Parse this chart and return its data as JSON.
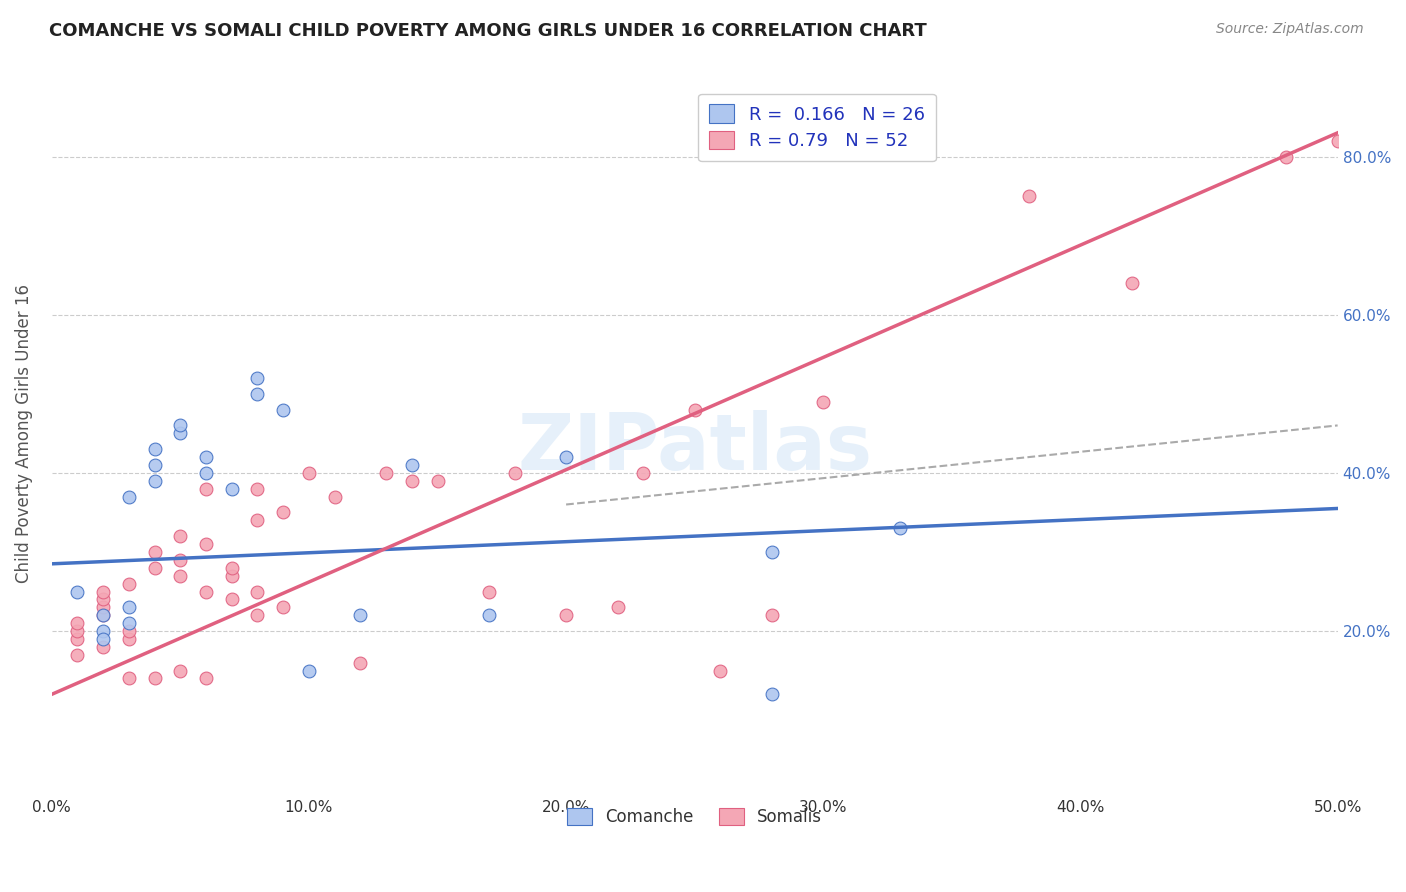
{
  "title": "COMANCHE VS SOMALI CHILD POVERTY AMONG GIRLS UNDER 16 CORRELATION CHART",
  "source": "Source: ZipAtlas.com",
  "ylabel": "Child Poverty Among Girls Under 16",
  "xlim": [
    0.0,
    0.5
  ],
  "ylim": [
    0.0,
    0.9
  ],
  "xticks": [
    0.0,
    0.1,
    0.2,
    0.3,
    0.4,
    0.5
  ],
  "yticks": [
    0.2,
    0.4,
    0.6,
    0.8
  ],
  "ytick_labels": [
    "20.0%",
    "40.0%",
    "60.0%",
    "80.0%"
  ],
  "xtick_labels": [
    "0.0%",
    "10.0%",
    "20.0%",
    "30.0%",
    "40.0%",
    "50.0%"
  ],
  "background_color": "#ffffff",
  "grid_color": "#cccccc",
  "comanche_color": "#aec6ef",
  "somali_color": "#f4a7b5",
  "comanche_line_color": "#4472c4",
  "somali_line_color": "#e06080",
  "dashed_line_color": "#aaaaaa",
  "legend_text_color": "#2233bb",
  "comanche_R": 0.166,
  "comanche_N": 26,
  "somali_R": 0.79,
  "somali_N": 52,
  "watermark": "ZIPatlas",
  "comanche_points": [
    [
      0.01,
      0.25
    ],
    [
      0.02,
      0.22
    ],
    [
      0.02,
      0.2
    ],
    [
      0.02,
      0.19
    ],
    [
      0.03,
      0.21
    ],
    [
      0.03,
      0.23
    ],
    [
      0.03,
      0.37
    ],
    [
      0.04,
      0.39
    ],
    [
      0.04,
      0.41
    ],
    [
      0.04,
      0.43
    ],
    [
      0.05,
      0.45
    ],
    [
      0.05,
      0.46
    ],
    [
      0.06,
      0.42
    ],
    [
      0.06,
      0.4
    ],
    [
      0.07,
      0.38
    ],
    [
      0.08,
      0.52
    ],
    [
      0.08,
      0.5
    ],
    [
      0.09,
      0.48
    ],
    [
      0.1,
      0.15
    ],
    [
      0.12,
      0.22
    ],
    [
      0.14,
      0.41
    ],
    [
      0.17,
      0.22
    ],
    [
      0.2,
      0.42
    ],
    [
      0.28,
      0.3
    ],
    [
      0.28,
      0.12
    ],
    [
      0.33,
      0.33
    ]
  ],
  "somali_points": [
    [
      0.01,
      0.17
    ],
    [
      0.01,
      0.19
    ],
    [
      0.01,
      0.2
    ],
    [
      0.01,
      0.21
    ],
    [
      0.02,
      0.18
    ],
    [
      0.02,
      0.22
    ],
    [
      0.02,
      0.23
    ],
    [
      0.02,
      0.24
    ],
    [
      0.02,
      0.25
    ],
    [
      0.03,
      0.14
    ],
    [
      0.03,
      0.19
    ],
    [
      0.03,
      0.2
    ],
    [
      0.03,
      0.26
    ],
    [
      0.04,
      0.14
    ],
    [
      0.04,
      0.28
    ],
    [
      0.04,
      0.3
    ],
    [
      0.05,
      0.15
    ],
    [
      0.05,
      0.27
    ],
    [
      0.05,
      0.29
    ],
    [
      0.05,
      0.32
    ],
    [
      0.06,
      0.14
    ],
    [
      0.06,
      0.25
    ],
    [
      0.06,
      0.31
    ],
    [
      0.06,
      0.38
    ],
    [
      0.07,
      0.24
    ],
    [
      0.07,
      0.27
    ],
    [
      0.07,
      0.28
    ],
    [
      0.08,
      0.22
    ],
    [
      0.08,
      0.25
    ],
    [
      0.08,
      0.34
    ],
    [
      0.08,
      0.38
    ],
    [
      0.09,
      0.23
    ],
    [
      0.09,
      0.35
    ],
    [
      0.1,
      0.4
    ],
    [
      0.11,
      0.37
    ],
    [
      0.12,
      0.16
    ],
    [
      0.13,
      0.4
    ],
    [
      0.14,
      0.39
    ],
    [
      0.15,
      0.39
    ],
    [
      0.17,
      0.25
    ],
    [
      0.18,
      0.4
    ],
    [
      0.2,
      0.22
    ],
    [
      0.22,
      0.23
    ],
    [
      0.23,
      0.4
    ],
    [
      0.25,
      0.48
    ],
    [
      0.26,
      0.15
    ],
    [
      0.28,
      0.22
    ],
    [
      0.3,
      0.49
    ],
    [
      0.38,
      0.75
    ],
    [
      0.42,
      0.64
    ],
    [
      0.48,
      0.8
    ],
    [
      0.5,
      0.82
    ]
  ],
  "comanche_line_x": [
    0.0,
    0.5
  ],
  "comanche_line_y": [
    0.285,
    0.355
  ],
  "somali_line_x": [
    0.0,
    0.5
  ],
  "somali_line_y": [
    0.12,
    0.83
  ],
  "dashed_line_x": [
    0.2,
    0.5
  ],
  "dashed_line_y": [
    0.36,
    0.46
  ]
}
